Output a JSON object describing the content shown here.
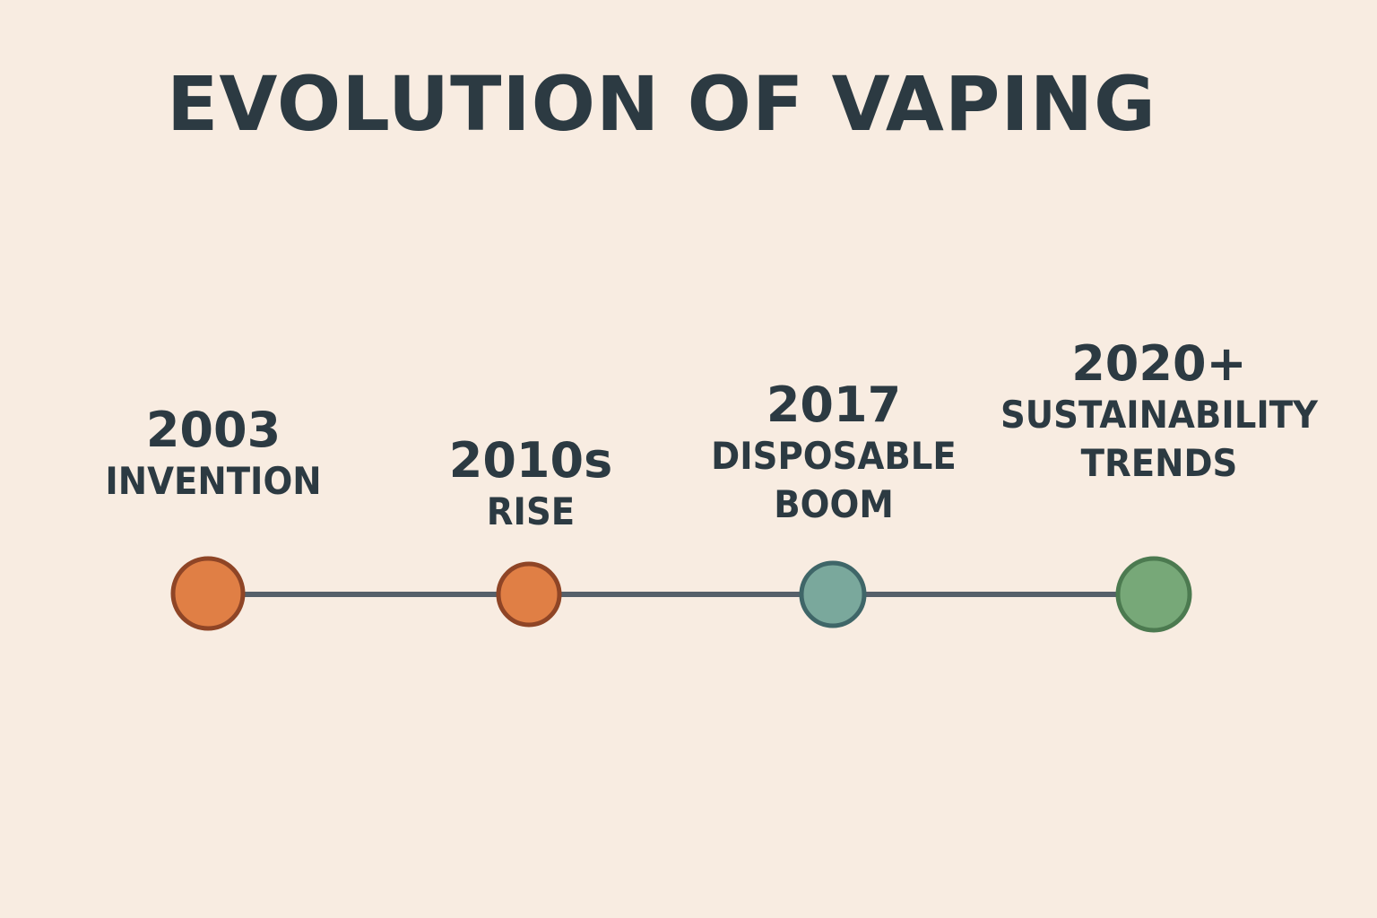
{
  "title": "EVOLUTION OF VAPING",
  "milestones": [
    {
      "year": "2003",
      "label": "INVENTION",
      "fill": "#e07f45",
      "stroke": "#8f4526"
    },
    {
      "year": "2010s",
      "label": "RISE",
      "fill": "#e07f45",
      "stroke": "#8f4526"
    },
    {
      "year": "2017",
      "label": "DISPOSABLE\nBOOM",
      "fill": "#7aa89c",
      "stroke": "#3f6668"
    },
    {
      "year": "2020+",
      "label": "SUSTAINABILITY\nTRENDS",
      "fill": "#77a878",
      "stroke": "#4c7a50"
    }
  ],
  "line_color": "#56606a"
}
